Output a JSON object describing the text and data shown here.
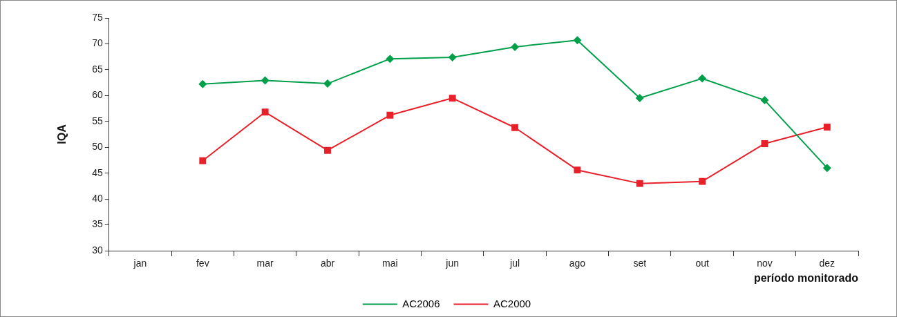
{
  "chart_data": {
    "type": "line",
    "xlabel": "período monitorado",
    "ylabel": "IQA",
    "categories": [
      "jan",
      "fev",
      "mar",
      "abr",
      "mai",
      "jun",
      "jul",
      "ago",
      "set",
      "out",
      "nov",
      "dez"
    ],
    "ylim": [
      30,
      75
    ],
    "yticks": [
      30,
      35,
      40,
      45,
      50,
      55,
      60,
      65,
      70,
      75
    ],
    "grid": false,
    "legend": "bottom",
    "line_style": "solid",
    "series": [
      {
        "name": "AC2006",
        "color": "#00a04b",
        "marker": "diamond",
        "values": [
          null,
          62.2,
          62.9,
          62.3,
          67.1,
          67.4,
          69.4,
          70.7,
          59.5,
          63.3,
          59.1,
          46.0
        ]
      },
      {
        "name": "AC2000",
        "color": "#e8202a",
        "marker": "square",
        "values": [
          null,
          47.4,
          56.8,
          49.4,
          56.2,
          59.5,
          53.8,
          45.6,
          43.0,
          43.4,
          50.7,
          53.9
        ]
      }
    ]
  }
}
